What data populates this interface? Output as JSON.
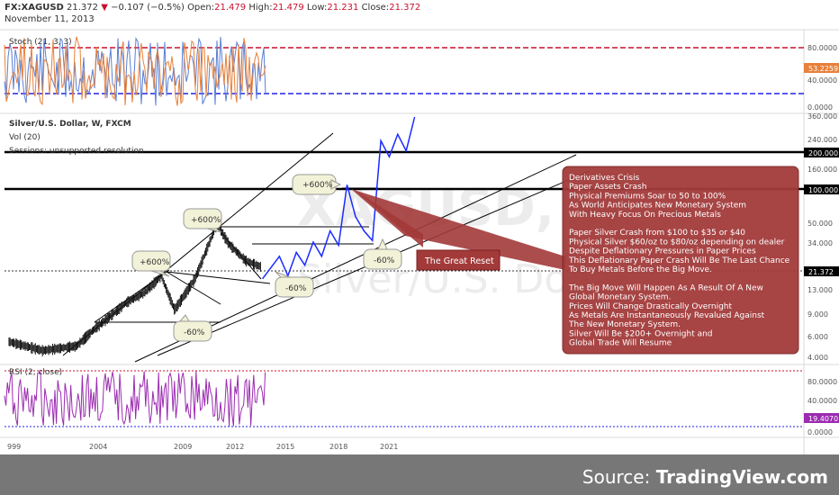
{
  "header": {
    "symbol": "FX:XAGUSD",
    "last": "21.372",
    "change_arrow": "▼",
    "change": "−0.107 (−0.5%)",
    "open_label": "Open:",
    "open": "21.479",
    "high_label": "High:",
    "high": "21.479",
    "low_label": "Low:",
    "low": "21.231",
    "close_label": "Close:",
    "close": "21.372",
    "date": "November 11, 2013"
  },
  "stoch": {
    "title": "Stoch (21, 3, 3)",
    "value_badge": "53.2259",
    "ticks": [
      "80.0000",
      "40.0000",
      "0.0000"
    ]
  },
  "main": {
    "title": "Silver/U.S. Dollar, W, FXCM",
    "vol": "Vol (20)",
    "sessions": "Sessions: unsupported resolution",
    "watermark_1": "XAGUSD, W",
    "watermark_2": "Silver/U.S. Dollar",
    "price_badge": "21.372",
    "ticks": [
      "360.000",
      "240.000",
      "200.000",
      "160.000",
      "100.000",
      "50.000",
      "34.000",
      "21.372",
      "13.000",
      "9.000",
      "6.000",
      "4.000"
    ]
  },
  "rsi": {
    "title": "RSI (2, close)",
    "value_badge": "19.4070",
    "ticks": [
      "80.0000",
      "40.0000",
      "0.0000"
    ]
  },
  "time_axis": [
    "999",
    "2004",
    "2009",
    "2012",
    "2015",
    "2018",
    "2021"
  ],
  "annotations": {
    "c1": "+600%",
    "c2": "+600%",
    "c3": "+600%",
    "c4": "-60%",
    "c5": "-60%",
    "c6": "-60%",
    "great_reset": "The Great Reset",
    "box_lines": [
      "Derivatives Crisis",
      "Paper Assets Crash",
      "Physical Premiums Soar to 50 to 100%",
      "As World Anticipates New Monetary System",
      "With Heavy Focus On Precious Metals",
      "",
      "Paper Silver Crash from $100 to $35 or $40",
      "Physical Silver $60/oz to $80/oz depending on dealer",
      "Despite Deflationary Pressures in Paper Prices",
      "This Deflationary Paper Crash Will Be The Last Chance",
      "To Buy Metals Before the Big Move.",
      "",
      "The Big Move Will Happen As A Result Of A New",
      "Global Monetary System.",
      "Prices Will Change Drastically Overnight",
      "As Metals Are Instantaneously Revalued Against",
      "The New Monetary System.",
      "Silver Will Be $200+ Overnight and",
      "Global Trade Will Resume"
    ]
  },
  "source": {
    "prefix": "Source: ",
    "brand": "TradingView.com"
  },
  "colors": {
    "red": "#c8102e",
    "blue_dash": "#2323e6",
    "projection": "#1a2bff",
    "stoch_orange": "#e8803a",
    "stoch_blue": "#5a7fd4",
    "rsi_purple": "#9b2bb0",
    "box_fill": "#a33a3a",
    "callout_fill": "#f2f2d8"
  },
  "chart_data": {
    "type": "line",
    "title": "Silver/U.S. Dollar, W, FXCM",
    "xlabel": "",
    "ylabel": "",
    "y_scale": "log",
    "ylim": [
      4,
      360
    ],
    "x_ticks": [
      "999",
      "2004",
      "2009",
      "2012",
      "2015",
      "2018",
      "2021"
    ],
    "horizontal_levels": [
      200,
      100,
      21.372
    ],
    "series": [
      {
        "points": [
          [
            1999,
            5.2
          ],
          [
            2001,
            4.4
          ],
          [
            2003,
            4.8
          ],
          [
            2004,
            6.5
          ],
          [
            2006,
            11
          ],
          [
            2007,
            13
          ],
          [
            2008,
            18
          ],
          [
            2008.8,
            9.5
          ],
          [
            2010,
            17
          ],
          [
            2011.3,
            48
          ],
          [
            2012,
            33
          ],
          [
            2013,
            24
          ],
          [
            2013.9,
            21.372
          ]
        ]
      },
      {
        "points": [
          [
            2014,
            17
          ],
          [
            2015,
            26
          ],
          [
            2015.5,
            18
          ],
          [
            2016,
            28
          ],
          [
            2016.5,
            22
          ],
          [
            2017,
            34
          ],
          [
            2017.5,
            26
          ],
          [
            2018,
            42
          ],
          [
            2018.5,
            32
          ],
          [
            2019,
            100
          ],
          [
            2019.5,
            55
          ],
          [
            2020,
            42
          ],
          [
            2020.5,
            35
          ],
          [
            2021,
            230
          ],
          [
            2021.5,
            170
          ],
          [
            2022,
            260
          ],
          [
            2022.5,
            190
          ],
          [
            2023,
            360
          ]
        ]
      }
    ]
  }
}
